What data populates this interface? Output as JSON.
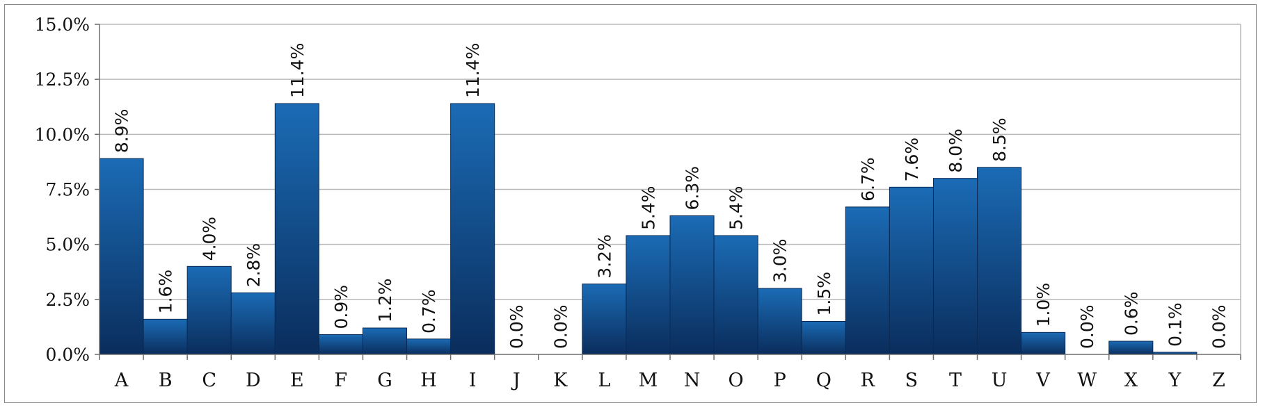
{
  "chart_data": {
    "type": "bar",
    "title": "",
    "xlabel": "",
    "ylabel": "",
    "ylim": [
      0,
      15
    ],
    "y_ticks": [
      0,
      2.5,
      5,
      7.5,
      10,
      12.5,
      15
    ],
    "y_tick_labels": [
      "0.0%",
      "2.5%",
      "5.0%",
      "7.5%",
      "10.0%",
      "12.5%",
      "15.0%"
    ],
    "grid": "horizontal",
    "legend": "none",
    "colors": {
      "bar_top": "#1b6bb5",
      "bar_bottom": "#0a2d5c",
      "grid": "#b8b8b8",
      "axis": "#6e6e6e"
    },
    "categories": [
      "A",
      "B",
      "C",
      "D",
      "E",
      "F",
      "G",
      "H",
      "I",
      "J",
      "K",
      "L",
      "M",
      "N",
      "O",
      "P",
      "Q",
      "R",
      "S",
      "T",
      "U",
      "V",
      "W",
      "X",
      "Y",
      "Z"
    ],
    "values": [
      8.9,
      1.6,
      4.0,
      2.8,
      11.4,
      0.9,
      1.2,
      0.7,
      11.4,
      0.0,
      0.0,
      3.2,
      5.4,
      6.3,
      5.4,
      3.0,
      1.5,
      6.7,
      7.6,
      8.0,
      8.5,
      1.0,
      0.0,
      0.6,
      0.1,
      0.0
    ],
    "data_labels": [
      "8.9%",
      "1.6%",
      "4.0%",
      "2.8%",
      "11.4%",
      "0.9%",
      "1.2%",
      "0.7%",
      "11.4%",
      "0.0%",
      "0.0%",
      "3.2%",
      "5.4%",
      "6.3%",
      "5.4%",
      "3.0%",
      "1.5%",
      "6.7%",
      "7.6%",
      "8.0%",
      "8.5%",
      "1.0%",
      "0.0%",
      "0.6%",
      "0.1%",
      "0.0%"
    ]
  }
}
